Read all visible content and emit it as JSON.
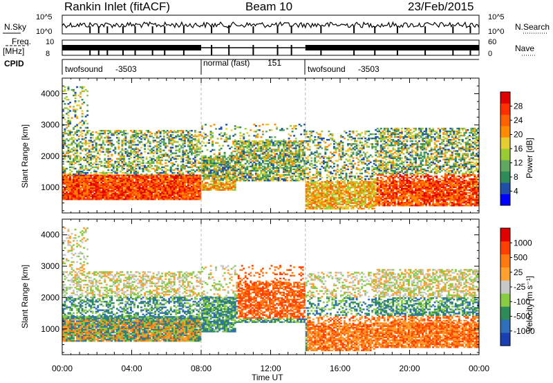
{
  "header": {
    "station_title": "Rankin Inlet (fitACF)",
    "beam": "Beam 10",
    "date": "23/Feb/2015"
  },
  "strip": {
    "nsky_label": "N.Sky",
    "nsky_ticks": [
      "10^5",
      "10^0"
    ],
    "nsearch_label": "N.Search",
    "nsearch_ticks": [
      "10^5",
      "10^0"
    ],
    "freq_label": "Freq.",
    "freq_unit": "[MHz]",
    "freq_ticks": [
      "10",
      "8"
    ],
    "nave_label": "Nave",
    "nave_ticks": [
      "60",
      "0"
    ],
    "cpid_label": "CPID",
    "cpid_segments": [
      {
        "name": "twofsound",
        "id": "-3503",
        "start_hour": 0,
        "end_hour": 8
      },
      {
        "name": "normal (fast)",
        "id": "151",
        "start_hour": 8,
        "end_hour": 14
      },
      {
        "name": "twofsound",
        "id": "-3503",
        "start_hour": 14,
        "end_hour": 24
      }
    ]
  },
  "colors": {
    "power_scale": [
      "#0000ff",
      "#1f4fa8",
      "#2e8b57",
      "#5fa860",
      "#99cc33",
      "#e6cc33",
      "#ff8c00",
      "#ff6000",
      "#ff3000",
      "#e00000"
    ],
    "velocity_scale": [
      "#1a3fb0",
      "#2e6fb8",
      "#2e8b57",
      "#88cc44",
      "#c8c8c8",
      "#ffa030",
      "#ff7a10",
      "#ff4000",
      "#e00000"
    ]
  },
  "chart_data": [
    {
      "type": "heatmap",
      "panel": "power",
      "ylabel": "Slant Range [km]",
      "xlabel": "Time UT",
      "x_ticks": [
        "00:00",
        "04:00",
        "08:00",
        "12:00",
        "16:00",
        "20:00",
        "00:00"
      ],
      "x_range_hours": [
        0,
        24
      ],
      "y_ticks": [
        "1000",
        "2000",
        "3000",
        "4000"
      ],
      "ylim": [
        180,
        4500
      ],
      "colorbar_label": "Power [dB]",
      "colorbar_ticks": [
        "28",
        "24",
        "20",
        "16",
        "12",
        "8",
        "4"
      ],
      "colorbar_range": [
        0,
        30
      ]
    },
    {
      "type": "heatmap",
      "panel": "velocity",
      "ylabel": "Slant Range [km]",
      "xlabel": "Time UT",
      "x_ticks": [
        "00:00",
        "04:00",
        "08:00",
        "12:00",
        "16:00",
        "20:00",
        "00:00"
      ],
      "x_range_hours": [
        0,
        24
      ],
      "y_ticks": [
        "1000",
        "2000",
        "3000",
        "4000"
      ],
      "ylim": [
        180,
        4500
      ],
      "colorbar_label": "Velocity [m s⁻¹]",
      "colorbar_ticks": [
        "1000",
        "500",
        "25",
        "-25",
        "-100",
        "-500",
        "-1000"
      ]
    }
  ]
}
